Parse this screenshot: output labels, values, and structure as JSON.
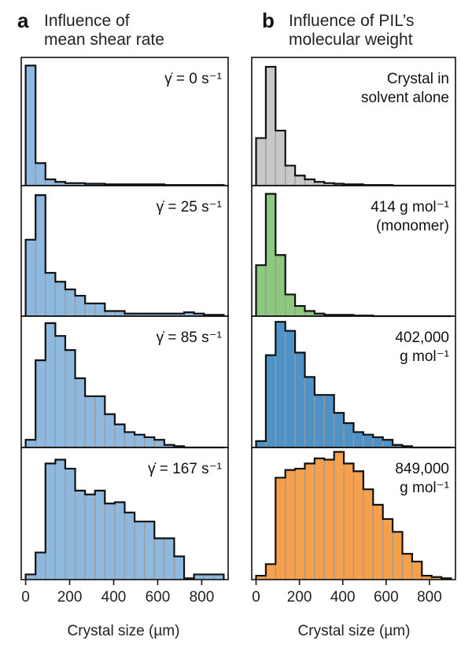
{
  "chart_data": [
    {
      "type": "bar",
      "panel_label": "a",
      "title_lines": [
        "Influence of",
        "mean shear rate"
      ],
      "xlabel": "Crystal size (µm)",
      "xlim": [
        -20,
        920
      ],
      "xticks": [
        0,
        200,
        400,
        600,
        800
      ],
      "bin_width": 45,
      "subplots": [
        {
          "annotation_lines": [
            "γ̇ = 0 s⁻¹"
          ],
          "color": "#8fb8df",
          "ymax": 1.0,
          "values": [
            0.96,
            0.18,
            0.05,
            0.03,
            0.02,
            0.02,
            0.015,
            0.015,
            0.01,
            0.01,
            0.01,
            0.01,
            0.01,
            0.01,
            0.005,
            0.005,
            0.005,
            0.005,
            0.005,
            0.005
          ]
        },
        {
          "annotation_lines": [
            "γ̇ = 25 s⁻¹"
          ],
          "color": "#8fb8df",
          "ymax": 1.0,
          "values": [
            0.6,
            0.95,
            0.34,
            0.27,
            0.21,
            0.16,
            0.1,
            0.1,
            0.04,
            0.04,
            0.02,
            0.02,
            0.02,
            0.02,
            0.02,
            0.02,
            0.03,
            0.02,
            0.01,
            0.01
          ]
        },
        {
          "annotation_lines": [
            "γ̇ = 85 s⁻¹"
          ],
          "color": "#8fb8df",
          "ymax": 1.0,
          "values": [
            0.06,
            0.68,
            0.97,
            0.87,
            0.76,
            0.54,
            0.4,
            0.4,
            0.26,
            0.18,
            0.12,
            0.1,
            0.08,
            0.06,
            0.02,
            0.01,
            0.0,
            0.0,
            0.0,
            0.0
          ]
        },
        {
          "annotation_lines": [
            "γ̇ = 167 s⁻¹"
          ],
          "color": "#8fb8df",
          "ymax": 1.0,
          "values": [
            0.04,
            0.21,
            0.9,
            0.93,
            0.86,
            0.69,
            0.66,
            0.69,
            0.59,
            0.6,
            0.52,
            0.45,
            0.45,
            0.32,
            0.32,
            0.18,
            0.01,
            0.04,
            0.04,
            0.04
          ]
        }
      ]
    },
    {
      "type": "bar",
      "panel_label": "b",
      "title_lines": [
        "Influence of PIL’s",
        "molecular weight"
      ],
      "xlabel": "Crystal size (µm)",
      "xlim": [
        -20,
        920
      ],
      "xticks": [
        0,
        200,
        400,
        600,
        800
      ],
      "bin_width": 45,
      "subplots": [
        {
          "annotation_lines": [
            "Crystal in",
            "solvent alone"
          ],
          "color": "#c8c8c8",
          "ymax": 1.0,
          "values": [
            0.38,
            0.95,
            0.44,
            0.16,
            0.08,
            0.05,
            0.03,
            0.02,
            0.015,
            0.01,
            0.01,
            0.005,
            0.005,
            0.005,
            0.0,
            0.0,
            0.0,
            0.0,
            0.0,
            0.0
          ]
        },
        {
          "annotation_lines": [
            "414 g mol⁻¹",
            "(monomer)"
          ],
          "color": "#8dc87f",
          "ymax": 1.0,
          "values": [
            0.4,
            0.96,
            0.48,
            0.17,
            0.08,
            0.04,
            0.02,
            0.01,
            0.01,
            0.01,
            0.005,
            0.005,
            0.0,
            0.0,
            0.0,
            0.0,
            0.0,
            0.0,
            0.0,
            0.0
          ]
        },
        {
          "annotation_lines": [
            "402,000",
            "g mol⁻¹"
          ],
          "color": "#4f92c6",
          "ymax": 1.0,
          "values": [
            0.05,
            0.72,
            0.98,
            0.91,
            0.74,
            0.55,
            0.41,
            0.41,
            0.27,
            0.19,
            0.12,
            0.1,
            0.08,
            0.06,
            0.02,
            0.01,
            0.0,
            0.0,
            0.0,
            0.0
          ]
        },
        {
          "annotation_lines": [
            "849,000",
            "g mol⁻¹"
          ],
          "color": "#f6a04c",
          "ymax": 1.0,
          "values": [
            0.03,
            0.12,
            0.79,
            0.85,
            0.86,
            0.9,
            0.94,
            0.93,
            0.99,
            0.9,
            0.84,
            0.7,
            0.58,
            0.47,
            0.37,
            0.2,
            0.14,
            0.03,
            0.02,
            0.01
          ]
        }
      ]
    }
  ]
}
